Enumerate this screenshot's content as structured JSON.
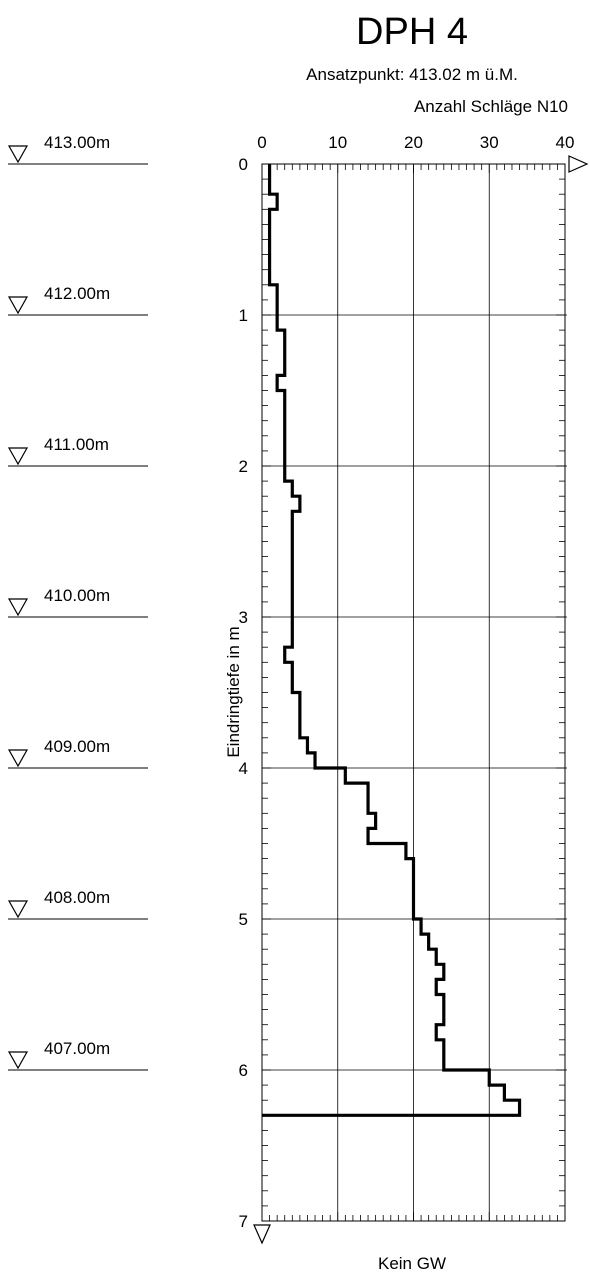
{
  "chart_data": {
    "type": "line",
    "title": "DPH 4",
    "subtitle": "Ansatzpunkt: 413.02 m ü.M.",
    "xlabel": "Anzahl Schläge N10",
    "ylabel": "Eindringtiefe in m",
    "xlim": [
      0,
      40
    ],
    "ylim": [
      0,
      7
    ],
    "x_ticks": [
      "0",
      "10",
      "20",
      "30",
      "40"
    ],
    "y_ticks": [
      "0",
      "1",
      "2",
      "3",
      "4",
      "5",
      "6",
      "7"
    ],
    "grid": true,
    "footer": "Kein GW",
    "elevation_labels": [
      {
        "label": "413.00m",
        "depth": 0
      },
      {
        "label": "412.00m",
        "depth": 1
      },
      {
        "label": "411.00m",
        "depth": 2
      },
      {
        "label": "410.00m",
        "depth": 3
      },
      {
        "label": "409.00m",
        "depth": 4
      },
      {
        "label": "408.00m",
        "depth": 5
      },
      {
        "label": "407.00m",
        "depth": 6
      }
    ],
    "series": [
      {
        "intervals": [
          {
            "from": 0.0,
            "to": 0.2,
            "blows": 1
          },
          {
            "from": 0.2,
            "to": 0.3,
            "blows": 2
          },
          {
            "from": 0.3,
            "to": 0.8,
            "blows": 1
          },
          {
            "from": 0.8,
            "to": 1.1,
            "blows": 2
          },
          {
            "from": 1.1,
            "to": 1.4,
            "blows": 3
          },
          {
            "from": 1.4,
            "to": 1.5,
            "blows": 2
          },
          {
            "from": 1.5,
            "to": 2.0,
            "blows": 3
          },
          {
            "from": 2.0,
            "to": 2.1,
            "blows": 3
          },
          {
            "from": 2.1,
            "to": 2.2,
            "blows": 4
          },
          {
            "from": 2.2,
            "to": 2.3,
            "blows": 5
          },
          {
            "from": 2.3,
            "to": 3.2,
            "blows": 4
          },
          {
            "from": 3.2,
            "to": 3.3,
            "blows": 3
          },
          {
            "from": 3.3,
            "to": 3.5,
            "blows": 4
          },
          {
            "from": 3.5,
            "to": 3.8,
            "blows": 5
          },
          {
            "from": 3.8,
            "to": 3.9,
            "blows": 6
          },
          {
            "from": 3.9,
            "to": 4.0,
            "blows": 7
          },
          {
            "from": 4.0,
            "to": 4.1,
            "blows": 11
          },
          {
            "from": 4.1,
            "to": 4.3,
            "blows": 14
          },
          {
            "from": 4.3,
            "to": 4.4,
            "blows": 15
          },
          {
            "from": 4.4,
            "to": 4.5,
            "blows": 14
          },
          {
            "from": 4.5,
            "to": 4.6,
            "blows": 19
          },
          {
            "from": 4.6,
            "to": 5.0,
            "blows": 20
          },
          {
            "from": 5.0,
            "to": 5.1,
            "blows": 21
          },
          {
            "from": 5.1,
            "to": 5.2,
            "blows": 22
          },
          {
            "from": 5.2,
            "to": 5.3,
            "blows": 23
          },
          {
            "from": 5.3,
            "to": 5.4,
            "blows": 24
          },
          {
            "from": 5.4,
            "to": 5.5,
            "blows": 23
          },
          {
            "from": 5.5,
            "to": 5.7,
            "blows": 24
          },
          {
            "from": 5.7,
            "to": 5.8,
            "blows": 23
          },
          {
            "from": 5.8,
            "to": 6.0,
            "blows": 24
          },
          {
            "from": 6.0,
            "to": 6.1,
            "blows": 30
          },
          {
            "from": 6.1,
            "to": 6.2,
            "blows": 32
          },
          {
            "from": 6.2,
            "to": 6.3,
            "blows": 34
          }
        ]
      }
    ]
  }
}
